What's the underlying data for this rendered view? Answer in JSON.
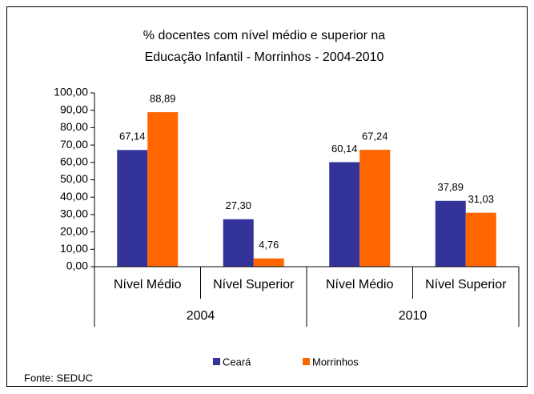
{
  "chart_data": {
    "type": "bar",
    "title": [
      "% docentes com nível médio e superior na",
      "Educação Infantil - Morrinhos  - 2004-2010"
    ],
    "categories": [
      "Nível Médio",
      "Nível Superior",
      "Nível Médio",
      "Nível Superior"
    ],
    "groups": [
      "2004",
      "2010"
    ],
    "series": [
      {
        "name": "Ceará",
        "color": "#333399",
        "values": [
          67.14,
          27.3,
          60.14,
          37.89
        ],
        "value_labels": [
          "67,14",
          "27,30",
          "60,14",
          "37,89"
        ]
      },
      {
        "name": "Morrinhos",
        "color": "#FF6600",
        "values": [
          88.89,
          4.76,
          67.24,
          31.03
        ],
        "value_labels": [
          "88,89",
          "4,76",
          "67,24",
          "31,03"
        ]
      }
    ],
    "ylim": [
      0,
      100
    ],
    "yticks": [
      {
        "value": 0,
        "label": "0,00"
      },
      {
        "value": 10,
        "label": "10,00"
      },
      {
        "value": 20,
        "label": "20,00"
      },
      {
        "value": 30,
        "label": "30,00"
      },
      {
        "value": 40,
        "label": "40,00"
      },
      {
        "value": 50,
        "label": "50,00"
      },
      {
        "value": 60,
        "label": "60,00"
      },
      {
        "value": 70,
        "label": "70,00"
      },
      {
        "value": 80,
        "label": "80,00"
      },
      {
        "value": 90,
        "label": "90,00"
      },
      {
        "value": 100,
        "label": "100,00"
      }
    ],
    "legend": "bottom",
    "note": "Fonte: SEDUC"
  }
}
